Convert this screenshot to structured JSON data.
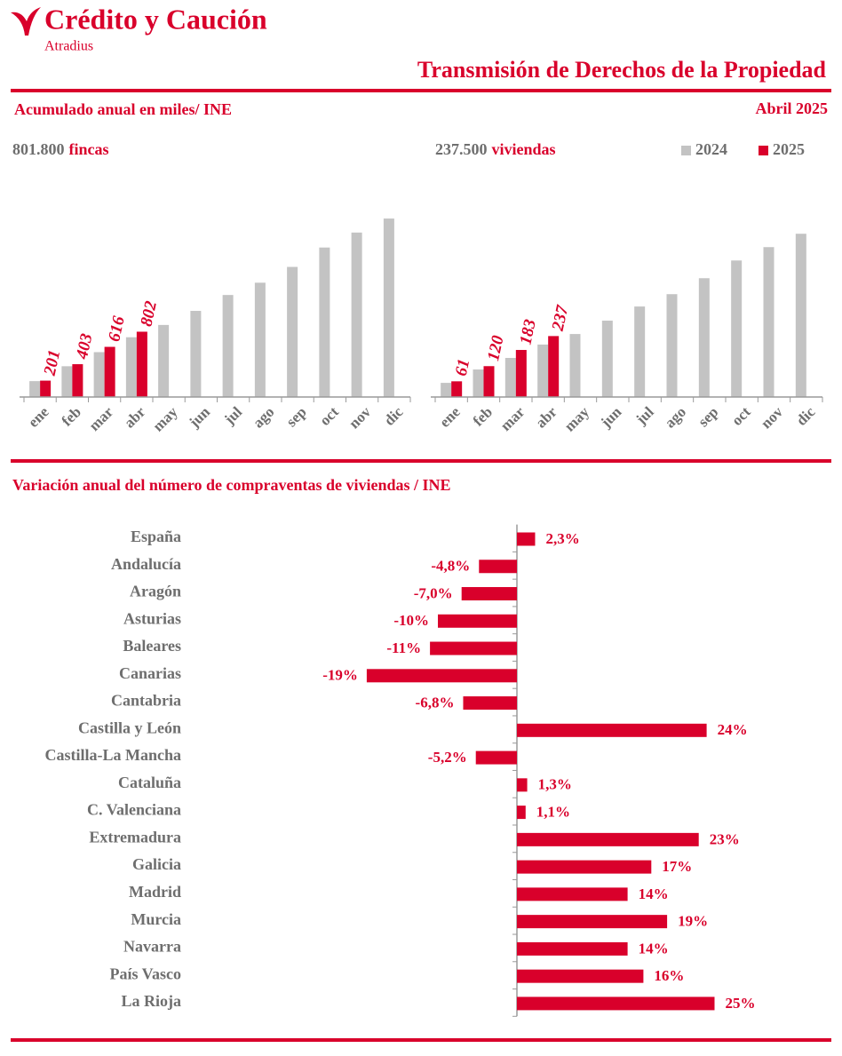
{
  "header": {
    "brand": "Crédito y Caución",
    "sub_brand": "Atradius",
    "title": "Transmisión de Derechos de la Propiedad",
    "subtitle": "Acumulado anual en miles/ INE",
    "date": "Abril  2025"
  },
  "chart_data": [
    {
      "type": "bar",
      "headline": "801.800",
      "headline_unit": "fincas",
      "categories": [
        "ene",
        "feb",
        "mar",
        "abr",
        "may",
        "jun",
        "jul",
        "ago",
        "sep",
        "oct",
        "nov",
        "dic"
      ],
      "series": [
        {
          "color": "#c3c3c3",
          "values": [
            195,
            378,
            551,
            734,
            885,
            1058,
            1253,
            1404,
            1598,
            1836,
            2020,
            2192
          ]
        },
        {
          "color": "#d9002b",
          "values": [
            201,
            403,
            616,
            802,
            null,
            null,
            null,
            null,
            null,
            null,
            null,
            null
          ]
        }
      ],
      "ylim": [
        0,
        2400
      ]
    },
    {
      "type": "bar",
      "headline": "237.500",
      "headline_unit": "viviendas",
      "legend": "upper right",
      "categories": [
        "ene",
        "feb",
        "mar",
        "abr",
        "may",
        "jun",
        "jul",
        "ago",
        "sep",
        "oct",
        "nov",
        "dic"
      ],
      "series": [
        {
          "name": "2024",
          "color": "#c3c3c3",
          "values": [
            55,
            107,
            152,
            204,
            245,
            297,
            352,
            400,
            462,
            531,
            583,
            635
          ]
        },
        {
          "name": "2025",
          "color": "#d9002b",
          "values": [
            61,
            120,
            183,
            237,
            null,
            null,
            null,
            null,
            null,
            null,
            null,
            null
          ]
        }
      ],
      "ylim": [
        0,
        760
      ]
    },
    {
      "type": "hbar",
      "title": "Variación anual del número de compraventas de viviendas / INE",
      "categories": [
        "España",
        "Andalucía",
        "Aragón",
        "Asturias",
        "Baleares",
        "Canarias",
        "Cantabria",
        "Castilla y León",
        "Castilla-La Mancha",
        "Cataluña",
        "C. Valenciana",
        "Extremadura",
        "Galicia",
        "Madrid",
        "Murcia",
        "Navarra",
        "País Vasco",
        "La Rioja"
      ],
      "values": [
        2.3,
        -4.8,
        -7.0,
        -10,
        -11,
        -19,
        -6.8,
        24,
        -5.2,
        1.3,
        1.1,
        23,
        17,
        14,
        19,
        14,
        16,
        25
      ],
      "value_labels": [
        "2,3%",
        "-4,8%",
        "-7,0%",
        "-10%",
        "-11%",
        "-19%",
        "-6,8%",
        "24%",
        "-5,2%",
        "1,3%",
        "1,1%",
        "23%",
        "17%",
        "14%",
        "19%",
        "14%",
        "16%",
        "25%"
      ],
      "color": "#d9002b",
      "xlim": [
        -25,
        30
      ]
    }
  ]
}
